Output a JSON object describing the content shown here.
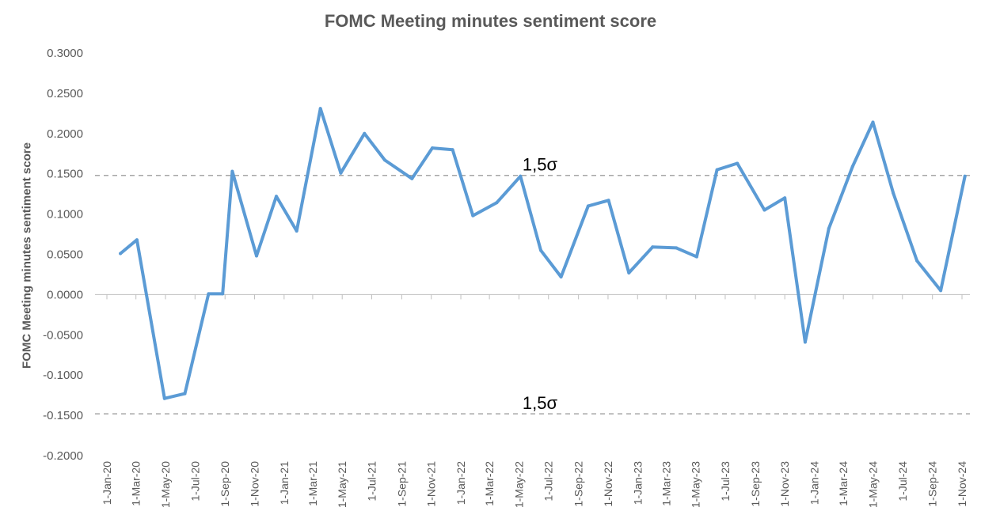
{
  "chart_data": {
    "type": "line",
    "title": "FOMC Meeting minutes sentiment score",
    "ylabel": "FOMC Meeting minutes sentiment score",
    "xlabel": "",
    "ylim": [
      -0.2,
      0.3
    ],
    "y_ticks": [
      "0.3000",
      "0.2500",
      "0.2000",
      "0.1500",
      "0.1000",
      "0.0500",
      "0.0000",
      "-0.0500",
      "-0.1000",
      "-0.1500",
      "-0.2000"
    ],
    "y_tick_values": [
      0.3,
      0.25,
      0.2,
      0.15,
      0.1,
      0.05,
      0.0,
      -0.05,
      -0.1,
      -0.15,
      -0.2
    ],
    "x_range": [
      "2020-01-01",
      "2024-11-01"
    ],
    "x_ticks": [
      "1-Jan-20",
      "1-Mar-20",
      "1-May-20",
      "1-Jul-20",
      "1-Sep-20",
      "1-Nov-20",
      "1-Jan-21",
      "1-Mar-21",
      "1-May-21",
      "1-Jul-21",
      "1-Sep-21",
      "1-Nov-21",
      "1-Jan-22",
      "1-Mar-22",
      "1-May-22",
      "1-Jul-22",
      "1-Sep-22",
      "1-Nov-22",
      "1-Jan-23",
      "1-Mar-23",
      "1-May-23",
      "1-Jul-23",
      "1-Sep-23",
      "1-Nov-23",
      "1-Jan-24",
      "1-Mar-24",
      "1-May-24",
      "1-Jul-24",
      "1-Sep-24",
      "1-Nov-24"
    ],
    "x_tick_dates": [
      "2020-01-01",
      "2020-03-01",
      "2020-05-01",
      "2020-07-01",
      "2020-09-01",
      "2020-11-01",
      "2021-01-01",
      "2021-03-01",
      "2021-05-01",
      "2021-07-01",
      "2021-09-01",
      "2021-11-01",
      "2022-01-01",
      "2022-03-01",
      "2022-05-01",
      "2022-07-01",
      "2022-09-01",
      "2022-11-01",
      "2023-01-01",
      "2023-03-01",
      "2023-05-01",
      "2023-07-01",
      "2023-09-01",
      "2023-11-01",
      "2024-01-01",
      "2024-03-01",
      "2024-05-01",
      "2024-07-01",
      "2024-09-01",
      "2024-11-01"
    ],
    "series": [
      {
        "color": "#5B9BD5",
        "points": [
          {
            "x": "2020-01-29",
            "y": 0.051
          },
          {
            "x": "2020-03-03",
            "y": 0.068
          },
          {
            "x": "2020-04-29",
            "y": -0.129
          },
          {
            "x": "2020-06-10",
            "y": -0.123
          },
          {
            "x": "2020-07-29",
            "y": 0.001
          },
          {
            "x": "2020-08-27",
            "y": 0.001
          },
          {
            "x": "2020-09-16",
            "y": 0.153
          },
          {
            "x": "2020-11-05",
            "y": 0.048
          },
          {
            "x": "2020-12-16",
            "y": 0.122
          },
          {
            "x": "2021-01-27",
            "y": 0.079
          },
          {
            "x": "2021-03-17",
            "y": 0.231
          },
          {
            "x": "2021-04-28",
            "y": 0.151
          },
          {
            "x": "2021-06-16",
            "y": 0.2
          },
          {
            "x": "2021-07-28",
            "y": 0.167
          },
          {
            "x": "2021-09-22",
            "y": 0.144
          },
          {
            "x": "2021-11-03",
            "y": 0.182
          },
          {
            "x": "2021-12-15",
            "y": 0.18
          },
          {
            "x": "2022-01-26",
            "y": 0.098
          },
          {
            "x": "2022-03-16",
            "y": 0.114
          },
          {
            "x": "2022-05-04",
            "y": 0.147
          },
          {
            "x": "2022-06-15",
            "y": 0.055
          },
          {
            "x": "2022-07-27",
            "y": 0.022
          },
          {
            "x": "2022-09-21",
            "y": 0.11
          },
          {
            "x": "2022-11-02",
            "y": 0.117
          },
          {
            "x": "2022-12-14",
            "y": 0.027
          },
          {
            "x": "2023-02-01",
            "y": 0.059
          },
          {
            "x": "2023-03-22",
            "y": 0.058
          },
          {
            "x": "2023-05-03",
            "y": 0.047
          },
          {
            "x": "2023-06-14",
            "y": 0.155
          },
          {
            "x": "2023-07-26",
            "y": 0.163
          },
          {
            "x": "2023-09-20",
            "y": 0.105
          },
          {
            "x": "2023-11-01",
            "y": 0.12
          },
          {
            "x": "2023-12-13",
            "y": -0.059
          },
          {
            "x": "2024-01-31",
            "y": 0.082
          },
          {
            "x": "2024-03-20",
            "y": 0.159
          },
          {
            "x": "2024-05-01",
            "y": 0.214
          },
          {
            "x": "2024-06-12",
            "y": 0.126
          },
          {
            "x": "2024-07-31",
            "y": 0.042
          },
          {
            "x": "2024-09-18",
            "y": 0.005
          },
          {
            "x": "2024-11-07",
            "y": 0.147
          }
        ]
      }
    ],
    "reference_lines": [
      {
        "y": 0.148,
        "label": "1,5σ",
        "style": "dashed",
        "color": "#A6A6A6"
      },
      {
        "y": -0.148,
        "label": "1,5σ",
        "style": "dashed",
        "color": "#A6A6A6"
      }
    ],
    "grid": false,
    "legend": "none"
  }
}
